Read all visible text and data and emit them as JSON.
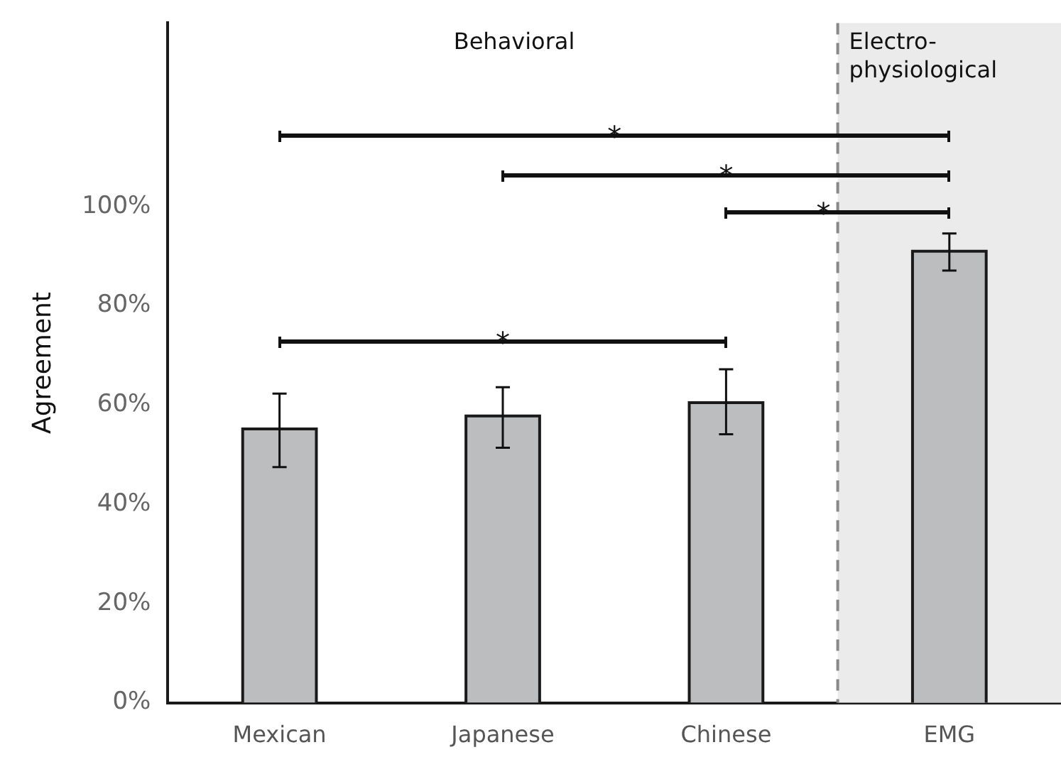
{
  "chart_data": {
    "type": "bar",
    "ylabel": "Agreement",
    "categories": [
      "Mexican",
      "Japanese",
      "Chinese",
      "EMG"
    ],
    "values": [
      55.2,
      57.8,
      60.5,
      91.0
    ],
    "errors": [
      [
        47.5,
        62.3
      ],
      [
        51.4,
        63.6
      ],
      [
        54.1,
        67.2
      ],
      [
        87.1,
        94.6
      ]
    ],
    "color": "#bcbdbf",
    "ylim": [
      0,
      137
    ],
    "yticks": [
      {
        "value": 0,
        "label": "0%"
      },
      {
        "value": 20,
        "label": "20%"
      },
      {
        "value": 40,
        "label": "40%"
      },
      {
        "value": 60,
        "label": "60%"
      },
      {
        "value": 80,
        "label": "80%"
      },
      {
        "value": 100,
        "label": "100%"
      }
    ],
    "bands": [
      {
        "axis": "x",
        "from": "EMG",
        "to": "EMG",
        "label": "Electro-physiological",
        "color": "#ebebeb"
      }
    ],
    "annotations": [
      "Behavioral",
      "*",
      "*",
      "*",
      "*"
    ],
    "grid": false,
    "legend": false
  }
}
